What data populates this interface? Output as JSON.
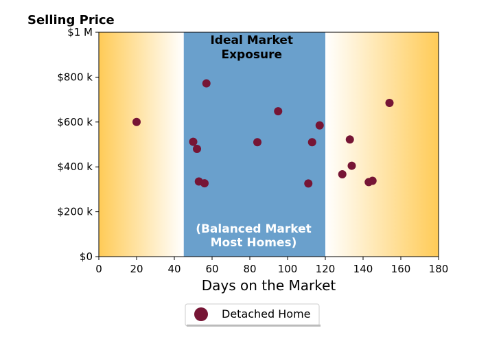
{
  "chart_data": {
    "type": "scatter",
    "title": "Selling Price",
    "xlabel": "Days on the Market",
    "ylabel": "Selling Price",
    "xlim": [
      0,
      180
    ],
    "ylim": [
      0,
      1000000
    ],
    "x_ticks": [
      0,
      20,
      40,
      60,
      80,
      100,
      120,
      140,
      160,
      180
    ],
    "x_tick_labels": [
      "0",
      "20",
      "40",
      "60",
      "80",
      "100",
      "120",
      "140",
      "160",
      "180"
    ],
    "y_ticks": [
      0,
      200000,
      400000,
      600000,
      800000,
      1000000
    ],
    "y_tick_labels": [
      "$0",
      "$200 k",
      "$400 k",
      "$600 k",
      "$800 k",
      "$1 M"
    ],
    "grid": false,
    "legend_position": "bottom-center",
    "background_regions": [
      {
        "x_range": [
          0,
          45
        ],
        "kind": "gradient",
        "color_edge": "#ffcb57",
        "color_inner": "#ffffff"
      },
      {
        "x_range": [
          45,
          120
        ],
        "kind": "solid",
        "color": "#6aa0cc"
      },
      {
        "x_range": [
          120,
          180
        ],
        "kind": "gradient",
        "color_edge": "#ffcb57",
        "color_inner": "#ffffff"
      }
    ],
    "annotations": [
      {
        "text_lines": [
          "Ideal Market",
          "Exposure"
        ],
        "x": 81,
        "y": 940000,
        "color": "#000000"
      },
      {
        "text_lines": [
          "(Balanced Market",
          "Most Homes)"
        ],
        "x": 82,
        "y": 95000,
        "color": "#ffffff"
      }
    ],
    "series": [
      {
        "name": "Detached Home",
        "color": "#761535",
        "points": [
          [
            20,
            600000
          ],
          [
            50,
            512000
          ],
          [
            52,
            480000
          ],
          [
            53,
            335000
          ],
          [
            56,
            327000
          ],
          [
            57,
            772000
          ],
          [
            84,
            510000
          ],
          [
            95,
            648000
          ],
          [
            111,
            326000
          ],
          [
            113,
            510000
          ],
          [
            117,
            585000
          ],
          [
            129,
            367000
          ],
          [
            133,
            522000
          ],
          [
            134,
            405000
          ],
          [
            143,
            332000
          ],
          [
            145,
            338000
          ],
          [
            154,
            685000
          ]
        ]
      }
    ]
  }
}
